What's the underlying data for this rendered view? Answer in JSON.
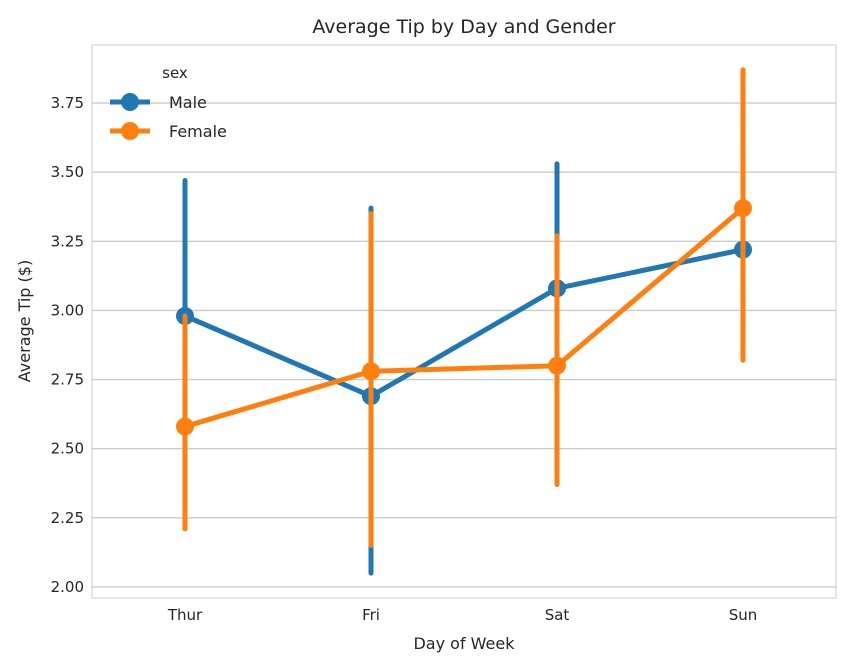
{
  "chart_data": {
    "type": "line",
    "title": "Average Tip by Day and Gender",
    "xlabel": "Day of Week",
    "ylabel": "Average Tip ($)",
    "categories": [
      "Thur",
      "Fri",
      "Sat",
      "Sun"
    ],
    "ylim": [
      1.96,
      3.96
    ],
    "yticks": [
      "2.00",
      "2.25",
      "2.50",
      "2.75",
      "3.00",
      "3.25",
      "3.50",
      "3.75"
    ],
    "grid": true,
    "legend": {
      "title": "sex",
      "placement": "top-left"
    },
    "series": [
      {
        "name": "Male",
        "color": "#1f77b4",
        "values": [
          2.98,
          2.69,
          3.08,
          3.22
        ],
        "ci_low": [
          2.58,
          2.05,
          2.68,
          2.88
        ],
        "ci_high": [
          3.47,
          3.37,
          3.53,
          3.53
        ]
      },
      {
        "name": "Female",
        "color": "#ff7f0e",
        "values": [
          2.58,
          2.78,
          2.8,
          3.37
        ],
        "ci_low": [
          2.21,
          2.15,
          2.37,
          2.82
        ],
        "ci_high": [
          2.98,
          3.35,
          3.27,
          3.87
        ]
      }
    ]
  }
}
